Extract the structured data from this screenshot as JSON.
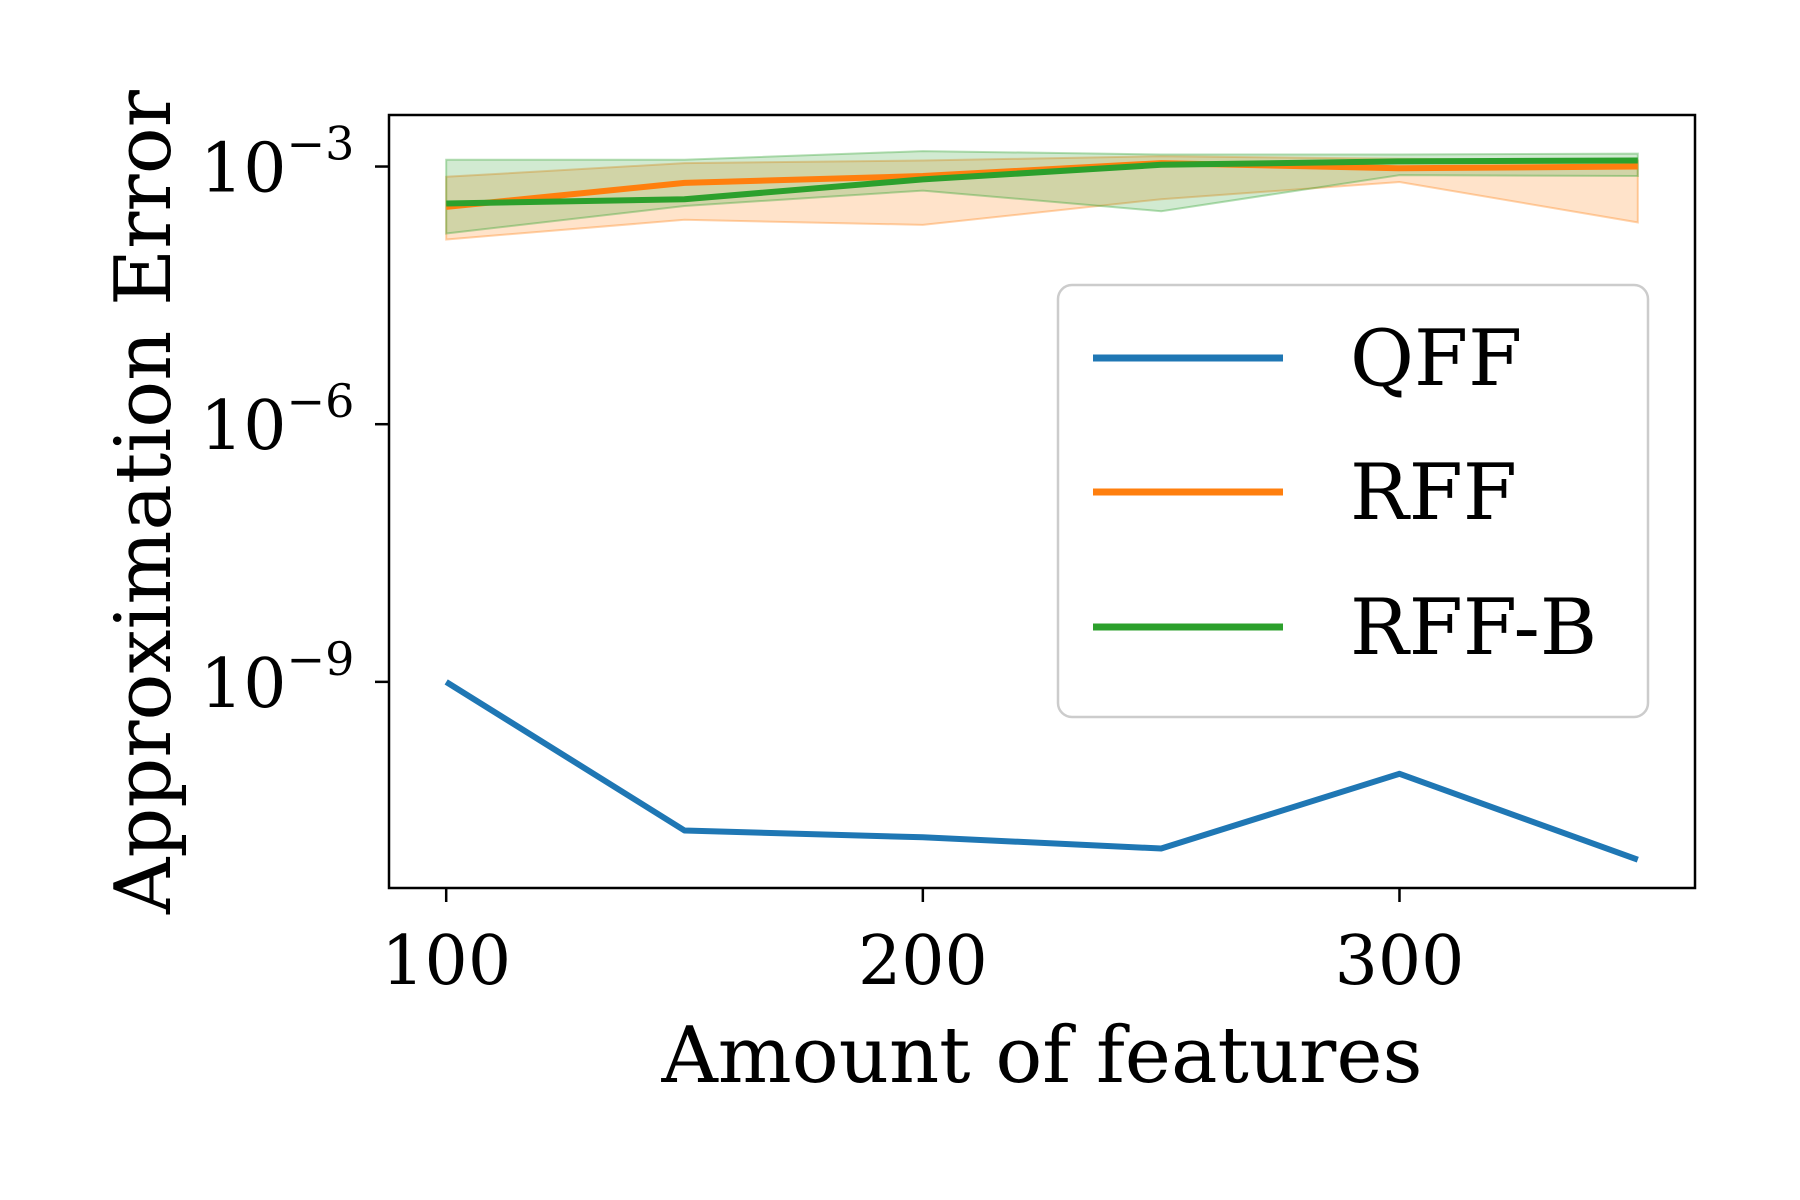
{
  "chart_data": {
    "type": "line",
    "xlabel": "Amount of features",
    "ylabel": "Approximation Error",
    "yscale": "log",
    "xlim": [
      88,
      362
    ],
    "ylim_exponent": [
      -11.4,
      -2.4
    ],
    "xticks": [
      100,
      200,
      300
    ],
    "yticks": [
      {
        "base": "10",
        "exp": "−3",
        "value": -3
      },
      {
        "base": "10",
        "exp": "−6",
        "value": -6
      },
      {
        "base": "10",
        "exp": "−9",
        "value": -9
      }
    ],
    "x": [
      100,
      150,
      200,
      250,
      300,
      350
    ],
    "series": [
      {
        "name": "QFF",
        "color": "#1f77b4",
        "log10_values": [
          -9.0,
          -10.73,
          -10.81,
          -10.94,
          -10.07,
          -11.07
        ]
      },
      {
        "name": "RFF",
        "color": "#ff7f0e",
        "log10_values": [
          -3.47,
          -3.19,
          -3.11,
          -2.96,
          -3.02,
          -3.0
        ],
        "band_lower": [
          -3.85,
          -3.62,
          -3.68,
          -3.38,
          -3.18,
          -3.65
        ],
        "band_upper": [
          -3.12,
          -2.96,
          -2.93,
          -2.88,
          -2.91,
          -2.93
        ]
      },
      {
        "name": "RFF-B",
        "color": "#2ca02c",
        "log10_values": [
          -3.43,
          -3.38,
          -3.15,
          -2.98,
          -2.94,
          -2.93
        ],
        "band_lower": [
          -3.78,
          -3.46,
          -3.28,
          -3.52,
          -3.1,
          -3.11
        ],
        "band_upper": [
          -2.92,
          -2.92,
          -2.82,
          -2.86,
          -2.86,
          -2.85
        ]
      }
    ],
    "legend_position": "center-right",
    "grid": false
  }
}
